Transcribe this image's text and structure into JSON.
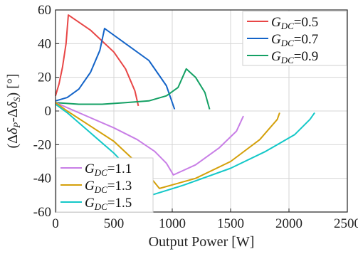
{
  "chart_data": {
    "type": "line",
    "title": "",
    "xlabel": "Output Power [W]",
    "ylabel": "(Δδ_P-Δδ_S) [°]",
    "ylabel_parts": {
      "open": "(Δ",
      "delta1": "δ",
      "sub1": "P",
      "mid": "-Δ",
      "delta2": "δ",
      "sub2": "S",
      "close": ") [°]"
    },
    "xlim": [
      0,
      2500
    ],
    "ylim": [
      -60,
      60
    ],
    "xticks": [
      0,
      500,
      1000,
      1500,
      2000,
      2500
    ],
    "yticks": [
      -60,
      -40,
      -20,
      0,
      20,
      40,
      60
    ],
    "grid": true,
    "legends": [
      {
        "placement": "top-right",
        "series": [
          0,
          1,
          2
        ]
      },
      {
        "placement": "bottom-left",
        "series": [
          3,
          4,
          5
        ]
      }
    ],
    "series": [
      {
        "name": "G_DC=0.5",
        "name_var": "G",
        "name_sub": "DC",
        "name_val": "=0.5",
        "color": "#e84646",
        "points": [
          [
            0,
            9
          ],
          [
            30,
            16
          ],
          [
            60,
            26
          ],
          [
            90,
            40
          ],
          [
            110,
            57
          ],
          [
            300,
            48
          ],
          [
            500,
            35
          ],
          [
            600,
            25
          ],
          [
            680,
            12
          ],
          [
            710,
            3
          ]
        ]
      },
      {
        "name": "G_DC=0.7",
        "name_var": "G",
        "name_sub": "DC",
        "name_val": "=0.7",
        "color": "#1464c8",
        "points": [
          [
            0,
            6
          ],
          [
            100,
            8
          ],
          [
            200,
            13
          ],
          [
            300,
            23
          ],
          [
            380,
            36
          ],
          [
            420,
            49
          ],
          [
            600,
            40
          ],
          [
            800,
            30
          ],
          [
            950,
            15
          ],
          [
            1020,
            1
          ]
        ]
      },
      {
        "name": "G_DC=0.9",
        "name_var": "G",
        "name_sub": "DC",
        "name_val": "=0.9",
        "color": "#14a064",
        "points": [
          [
            0,
            5
          ],
          [
            200,
            4
          ],
          [
            400,
            4
          ],
          [
            600,
            5
          ],
          [
            800,
            6
          ],
          [
            950,
            9
          ],
          [
            1050,
            14
          ],
          [
            1120,
            25
          ],
          [
            1200,
            20
          ],
          [
            1280,
            11
          ],
          [
            1320,
            1
          ]
        ]
      },
      {
        "name": "G_DC=1.1",
        "name_var": "G",
        "name_sub": "DC",
        "name_val": "=1.1",
        "color": "#c87ee6",
        "points": [
          [
            0,
            5
          ],
          [
            100,
            2
          ],
          [
            300,
            -4
          ],
          [
            500,
            -10
          ],
          [
            700,
            -17
          ],
          [
            850,
            -24
          ],
          [
            950,
            -31
          ],
          [
            1010,
            -38
          ],
          [
            1200,
            -32
          ],
          [
            1400,
            -22
          ],
          [
            1550,
            -12
          ],
          [
            1610,
            -3
          ]
        ]
      },
      {
        "name": "G_DC=1.3",
        "name_var": "G",
        "name_sub": "DC",
        "name_val": "=1.3",
        "color": "#d4a00a",
        "points": [
          [
            0,
            5
          ],
          [
            100,
            0
          ],
          [
            300,
            -9
          ],
          [
            500,
            -18
          ],
          [
            700,
            -31
          ],
          [
            820,
            -40
          ],
          [
            890,
            -46
          ],
          [
            1200,
            -40
          ],
          [
            1500,
            -30
          ],
          [
            1750,
            -17
          ],
          [
            1900,
            -5
          ],
          [
            1920,
            -1
          ]
        ]
      },
      {
        "name": "G_DC=1.5",
        "name_var": "G",
        "name_sub": "DC",
        "name_val": "=1.5",
        "color": "#14c8c8",
        "points": [
          [
            0,
            4
          ],
          [
            100,
            -1
          ],
          [
            300,
            -13
          ],
          [
            500,
            -25
          ],
          [
            650,
            -36
          ],
          [
            770,
            -45
          ],
          [
            820,
            -50
          ],
          [
            1100,
            -44
          ],
          [
            1500,
            -34
          ],
          [
            1800,
            -24
          ],
          [
            2050,
            -14
          ],
          [
            2180,
            -5
          ],
          [
            2220,
            -1
          ]
        ]
      }
    ]
  }
}
